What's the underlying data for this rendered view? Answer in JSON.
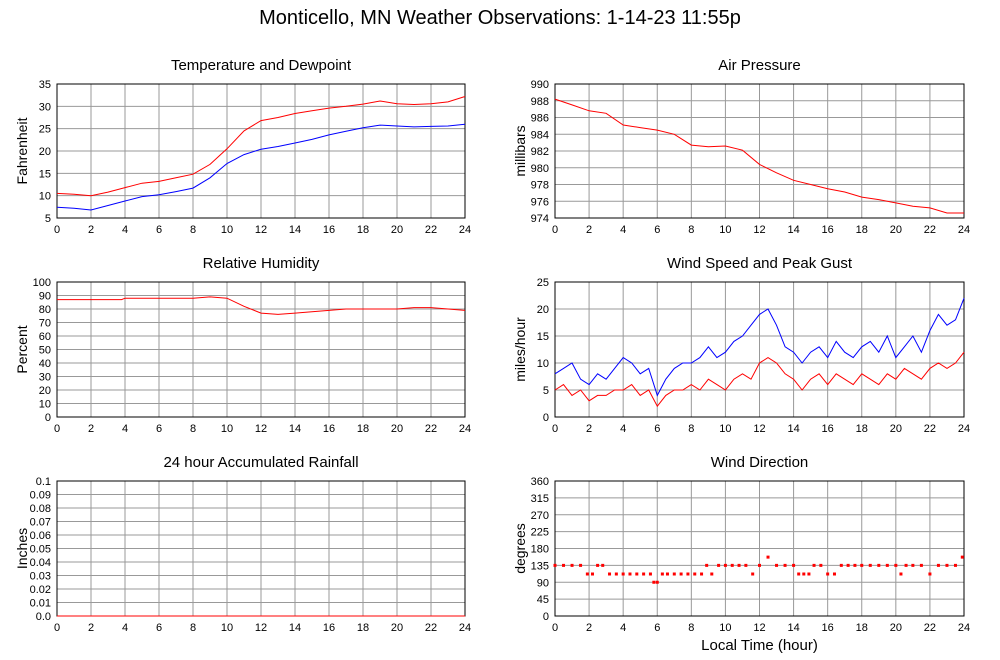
{
  "page": {
    "title": "Monticello, MN Weather Observations: 1-14-23 11:55p"
  },
  "colors": {
    "series_red": "#ff0000",
    "series_blue": "#0000ff",
    "grid": "#999999",
    "axis": "#000000"
  },
  "chart_data": [
    {
      "type": "line",
      "title": "Temperature and Dewpoint",
      "xlabel": "",
      "ylabel": "Fahrenheit",
      "xlim": [
        0,
        24
      ],
      "ylim": [
        5,
        35
      ],
      "xticks": [
        "0",
        "2",
        "4",
        "6",
        "8",
        "10",
        "12",
        "14",
        "16",
        "18",
        "20",
        "22",
        "24"
      ],
      "yticks": [
        "5",
        "10",
        "15",
        "20",
        "25",
        "30",
        "35"
      ],
      "grid": true,
      "series": [
        {
          "color": "#ff0000",
          "x": [
            0,
            1,
            2,
            3,
            4,
            5,
            6,
            7,
            8,
            9,
            10,
            11,
            12,
            13,
            14,
            15,
            16,
            17,
            18,
            19,
            20,
            21,
            22,
            23,
            24
          ],
          "y": [
            10.5,
            10.3,
            10.0,
            10.8,
            11.8,
            12.8,
            13.2,
            14.0,
            14.8,
            17.0,
            20.5,
            24.5,
            26.8,
            27.5,
            28.4,
            29.0,
            29.6,
            30.0,
            30.5,
            31.2,
            30.6,
            30.4,
            30.6,
            31.0,
            32.2
          ]
        },
        {
          "color": "#0000ff",
          "x": [
            0,
            1,
            2,
            3,
            4,
            5,
            6,
            7,
            8,
            9,
            10,
            11,
            12,
            13,
            14,
            15,
            16,
            17,
            18,
            19,
            20,
            21,
            22,
            23,
            24
          ],
          "y": [
            7.4,
            7.2,
            6.8,
            7.8,
            8.8,
            9.8,
            10.2,
            10.9,
            11.7,
            14.0,
            17.2,
            19.2,
            20.4,
            21.0,
            21.8,
            22.6,
            23.6,
            24.4,
            25.2,
            25.8,
            25.6,
            25.4,
            25.5,
            25.6,
            26.0
          ]
        }
      ]
    },
    {
      "type": "line",
      "title": "Air Pressure",
      "xlabel": "",
      "ylabel": "millibars",
      "xlim": [
        0,
        24
      ],
      "ylim": [
        974,
        990
      ],
      "xticks": [
        "0",
        "2",
        "4",
        "6",
        "8",
        "10",
        "12",
        "14",
        "16",
        "18",
        "20",
        "22",
        "24"
      ],
      "yticks": [
        "974",
        "976",
        "978",
        "980",
        "982",
        "984",
        "986",
        "988",
        "990"
      ],
      "grid": true,
      "series": [
        {
          "color": "#ff0000",
          "x": [
            0,
            1,
            2,
            3,
            4,
            5,
            6,
            7,
            8,
            9,
            10,
            11,
            12,
            13,
            14,
            15,
            16,
            17,
            18,
            19,
            20,
            21,
            22,
            23,
            24
          ],
          "y": [
            988.2,
            987.5,
            986.8,
            986.5,
            985.1,
            984.8,
            984.5,
            984.0,
            982.7,
            982.5,
            982.6,
            982.1,
            980.4,
            979.4,
            978.5,
            978.0,
            977.5,
            977.1,
            976.5,
            976.2,
            975.8,
            975.4,
            975.2,
            974.6,
            974.6
          ]
        }
      ]
    },
    {
      "type": "line",
      "title": "Relative Humidity",
      "xlabel": "",
      "ylabel": "Percent",
      "xlim": [
        0,
        24
      ],
      "ylim": [
        0,
        100
      ],
      "xticks": [
        "0",
        "2",
        "4",
        "6",
        "8",
        "10",
        "12",
        "14",
        "16",
        "18",
        "20",
        "22",
        "24"
      ],
      "yticks": [
        "0",
        "10",
        "20",
        "30",
        "40",
        "50",
        "60",
        "70",
        "80",
        "90",
        "100"
      ],
      "grid": true,
      "series": [
        {
          "color": "#ff0000",
          "x": [
            0,
            2,
            3.8,
            4,
            6,
            8,
            9,
            10,
            11,
            12,
            13,
            14,
            15,
            16,
            17,
            18,
            19,
            20,
            21,
            22,
            23,
            24
          ],
          "y": [
            87,
            87,
            87,
            88,
            88,
            88,
            89,
            88,
            82,
            77,
            76,
            77,
            78,
            79,
            80,
            80,
            80,
            80,
            81,
            81,
            80,
            79
          ]
        }
      ]
    },
    {
      "type": "line",
      "title": "Wind Speed and Peak Gust",
      "xlabel": "",
      "ylabel": "miles/hour",
      "xlim": [
        0,
        24
      ],
      "ylim": [
        0,
        25
      ],
      "xticks": [
        "0",
        "2",
        "4",
        "6",
        "8",
        "10",
        "12",
        "14",
        "16",
        "18",
        "20",
        "22",
        "24"
      ],
      "yticks": [
        "0",
        "5",
        "10",
        "15",
        "20",
        "25"
      ],
      "grid": true,
      "series": [
        {
          "color": "#0000ff",
          "x": [
            0,
            0.5,
            1,
            1.5,
            2,
            2.5,
            3,
            3.5,
            4,
            4.5,
            5,
            5.5,
            6,
            6.5,
            7,
            7.5,
            8,
            8.5,
            9,
            9.5,
            10,
            10.5,
            11,
            11.5,
            12,
            12.5,
            13,
            13.5,
            14,
            14.5,
            15,
            15.5,
            16,
            16.5,
            17,
            17.5,
            18,
            18.5,
            19,
            19.5,
            20,
            20.5,
            21,
            21.5,
            22,
            22.5,
            23,
            23.5,
            24
          ],
          "y": [
            8,
            9,
            10,
            7,
            6,
            8,
            7,
            9,
            11,
            10,
            8,
            9,
            4,
            7,
            9,
            10,
            10,
            11,
            13,
            11,
            12,
            14,
            15,
            17,
            19,
            20,
            17,
            13,
            12,
            10,
            12,
            13,
            11,
            14,
            12,
            11,
            13,
            14,
            12,
            15,
            11,
            13,
            15,
            12,
            16,
            19,
            17,
            18,
            22
          ]
        },
        {
          "color": "#ff0000",
          "x": [
            0,
            0.5,
            1,
            1.5,
            2,
            2.5,
            3,
            3.5,
            4,
            4.5,
            5,
            5.5,
            6,
            6.5,
            7,
            7.5,
            8,
            8.5,
            9,
            9.5,
            10,
            10.5,
            11,
            11.5,
            12,
            12.5,
            13,
            13.5,
            14,
            14.5,
            15,
            15.5,
            16,
            16.5,
            17,
            17.5,
            18,
            18.5,
            19,
            19.5,
            20,
            20.5,
            21,
            21.5,
            22,
            22.5,
            23,
            23.5,
            24
          ],
          "y": [
            5,
            6,
            4,
            5,
            3,
            4,
            4,
            5,
            5,
            6,
            4,
            5,
            2,
            4,
            5,
            5,
            6,
            5,
            7,
            6,
            5,
            7,
            8,
            7,
            10,
            11,
            10,
            8,
            7,
            5,
            7,
            8,
            6,
            8,
            7,
            6,
            8,
            7,
            6,
            8,
            7,
            9,
            8,
            7,
            9,
            10,
            9,
            10,
            12
          ]
        }
      ]
    },
    {
      "type": "line",
      "title": "24 hour Accumulated Rainfall",
      "xlabel": "",
      "ylabel": "Inches",
      "xlim": [
        0,
        24
      ],
      "ylim": [
        0,
        0.1
      ],
      "xticks": [
        "0",
        "2",
        "4",
        "6",
        "8",
        "10",
        "12",
        "14",
        "16",
        "18",
        "20",
        "22",
        "24"
      ],
      "yticks": [
        "0.0",
        "0.01",
        "0.02",
        "0.03",
        "0.04",
        "0.05",
        "0.06",
        "0.07",
        "0.08",
        "0.09",
        "0.1"
      ],
      "grid": true,
      "series": [
        {
          "color": "#ff0000",
          "x": [
            0,
            24
          ],
          "y": [
            0,
            0
          ]
        }
      ]
    },
    {
      "type": "scatter",
      "title": "Wind Direction",
      "xlabel": "Local Time (hour)",
      "ylabel": "degrees",
      "xlim": [
        0,
        24
      ],
      "ylim": [
        0,
        360
      ],
      "xticks": [
        "0",
        "2",
        "4",
        "6",
        "8",
        "10",
        "12",
        "14",
        "16",
        "18",
        "20",
        "22",
        "24"
      ],
      "yticks": [
        "0",
        "45",
        "90",
        "135",
        "180",
        "225",
        "270",
        "315",
        "360"
      ],
      "grid": true,
      "series": [
        {
          "color": "#ff0000",
          "x": [
            0,
            0.5,
            1,
            1.5,
            1.9,
            2.2,
            2.5,
            2.8,
            3.2,
            3.6,
            4,
            4.4,
            4.8,
            5.2,
            5.6,
            5.8,
            6,
            6.3,
            6.6,
            7,
            7.4,
            7.8,
            8.2,
            8.6,
            8.9,
            9.2,
            9.6,
            10,
            10.4,
            10.8,
            11.2,
            11.6,
            12,
            12.5,
            13,
            13.5,
            14,
            14.3,
            14.6,
            14.9,
            15.2,
            15.6,
            16,
            16.4,
            16.8,
            17.2,
            17.6,
            18,
            18.5,
            19,
            19.5,
            20,
            20.3,
            20.6,
            21,
            21.5,
            22,
            22.5,
            23,
            23.5,
            23.9
          ],
          "y": [
            135,
            135,
            135,
            135,
            112,
            112,
            135,
            135,
            112,
            112,
            112,
            112,
            112,
            112,
            112,
            90,
            90,
            112,
            112,
            112,
            112,
            112,
            112,
            112,
            135,
            112,
            135,
            135,
            135,
            135,
            135,
            112,
            135,
            157,
            135,
            135,
            135,
            112,
            112,
            112,
            135,
            135,
            112,
            112,
            135,
            135,
            135,
            135,
            135,
            135,
            135,
            135,
            112,
            135,
            135,
            135,
            112,
            135,
            135,
            135,
            157
          ]
        }
      ]
    }
  ]
}
